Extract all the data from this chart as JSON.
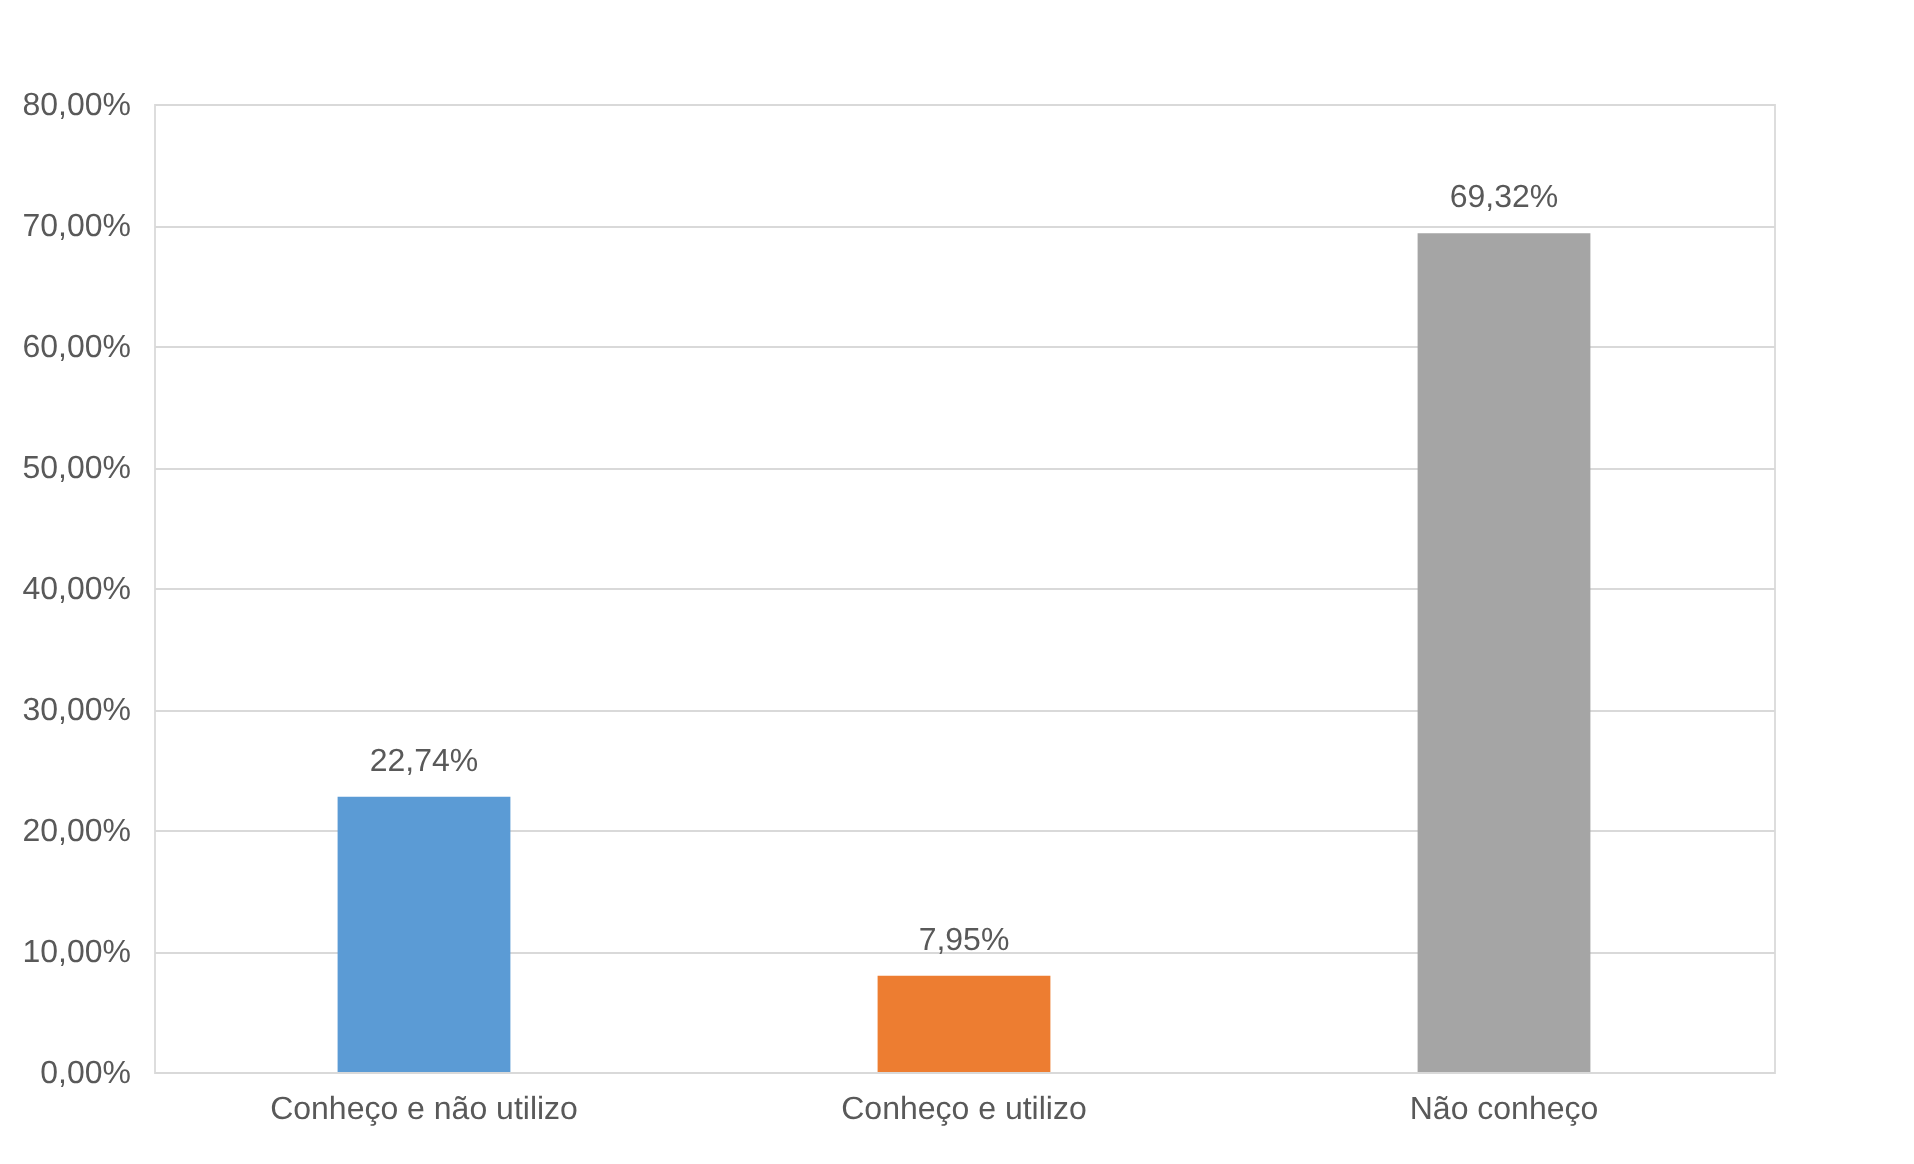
{
  "chart_data": {
    "type": "bar",
    "categories": [
      "Conheço e não utilizo",
      "Conheço e utilizo",
      "Não conheço"
    ],
    "values": [
      22.74,
      7.95,
      69.32
    ],
    "colors": [
      "#5b9bd5",
      "#ed7d31",
      "#a5a5a5"
    ],
    "value_labels": [
      "22,74%",
      "7,95%",
      "69,32%"
    ],
    "ylim": [
      0,
      80
    ],
    "yticks": [
      {
        "value": 0,
        "label": "0,00%"
      },
      {
        "value": 10,
        "label": "10,00%"
      },
      {
        "value": 20,
        "label": "20,00%"
      },
      {
        "value": 30,
        "label": "30,00%"
      },
      {
        "value": 40,
        "label": "40,00%"
      },
      {
        "value": 50,
        "label": "50,00%"
      },
      {
        "value": 60,
        "label": "60,00%"
      },
      {
        "value": 70,
        "label": "70,00%"
      },
      {
        "value": 80,
        "label": "80,00%"
      }
    ],
    "grid": "y",
    "legend": false
  }
}
